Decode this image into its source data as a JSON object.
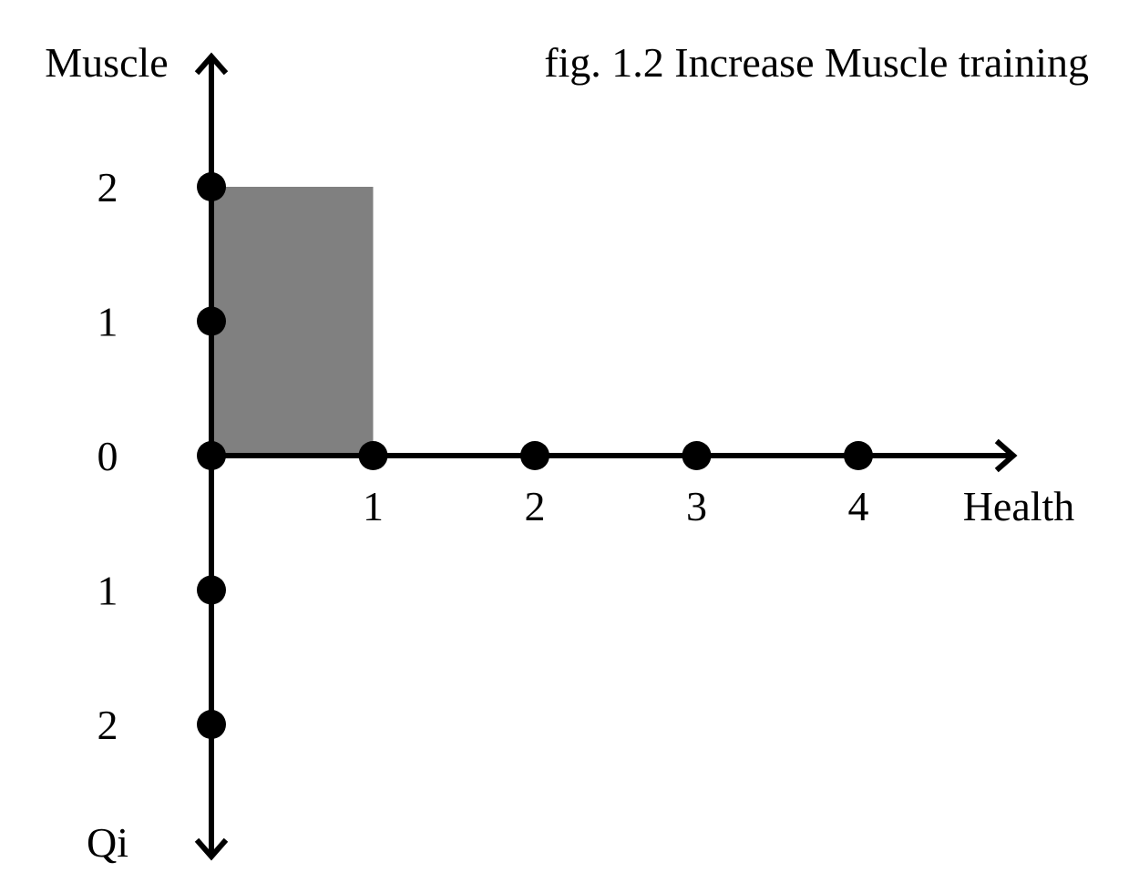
{
  "title": "fig. 1.2 Increase Muscle training",
  "axes": {
    "up_label": "Muscle",
    "right_label": "Health",
    "down_label": "Qi"
  },
  "vertical_ticks": [
    {
      "label": "2",
      "value": 2
    },
    {
      "label": "1",
      "value": 1
    },
    {
      "label": "0",
      "value": 0
    },
    {
      "label": "1",
      "value": -1
    },
    {
      "label": "2",
      "value": -2
    }
  ],
  "horizontal_ticks": [
    {
      "label": "1",
      "value": 1
    },
    {
      "label": "2",
      "value": 2
    },
    {
      "label": "3",
      "value": 3
    },
    {
      "label": "4",
      "value": 4
    }
  ],
  "highlight": {
    "health_from": 0,
    "health_to": 1,
    "muscle_from": 0,
    "muscle_to": 2,
    "color": "#808080"
  },
  "colors": {
    "axis": "#000000",
    "dot": "#000000",
    "background": "#ffffff"
  }
}
